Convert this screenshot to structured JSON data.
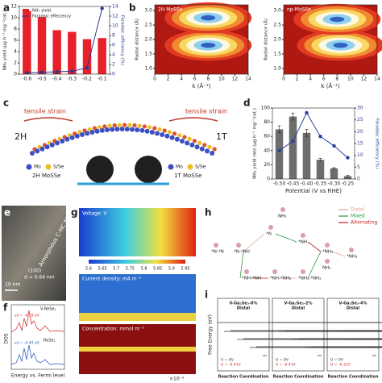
{
  "chart_data": [
    {
      "type": "bar",
      "label": "a",
      "categories": [
        "-0.6",
        "-0.5",
        "-0.4",
        "-0.3",
        "-0.2",
        "-0.1"
      ],
      "y_label": "NH₃ yield (μg h⁻¹ mg⁻¹cat.)",
      "y2_label": "Faradaic efficiency (%)",
      "series": [
        {
          "name": "NH₃ yield",
          "color": "#e8202a",
          "values": [
            11.2,
            10.1,
            7.8,
            7.5,
            6.2,
            6.4
          ]
        },
        {
          "name": "Faradaic effeciency",
          "color": "#2b3990",
          "type": "line",
          "axis": "y2",
          "values": [
            0.3,
            0.4,
            0.5,
            0.6,
            1.3,
            13.6
          ]
        }
      ],
      "ylim": [
        0,
        12
      ],
      "yticks": [
        0,
        2,
        4,
        6,
        8,
        10,
        12
      ],
      "y2lim": [
        0,
        14
      ],
      "y2ticks": [
        0,
        2,
        4,
        6,
        8,
        10,
        12,
        14
      ],
      "legend": "upper left"
    },
    {
      "type": "contour",
      "label": "b",
      "title": "2H MoSSe",
      "x_label": "k (Å⁻¹)",
      "y_label": "Radial distance (Å)",
      "xlim": [
        0,
        14
      ],
      "xticks": [
        0,
        2,
        4,
        6,
        8,
        10,
        12,
        14
      ],
      "ylim": [
        0.8,
        3.2
      ],
      "yticks": [
        {
          "value": 1,
          "label": "1.0"
        },
        1.5,
        {
          "value": 2,
          "label": "2.0"
        },
        2.5,
        {
          "value": 3,
          "label": "3.0"
        }
      ],
      "peaks": [
        {
          "x": 8,
          "y": 1.8
        },
        {
          "x": 8,
          "y": 2.75
        }
      ]
    },
    {
      "type": "contour",
      "title": "np-MoSSe",
      "x_label": "k (Å⁻¹)",
      "y_label": "Radial distance (Å)",
      "xlim": [
        0,
        14
      ],
      "xticks": [
        0,
        2,
        4,
        6,
        8,
        10,
        12,
        14
      ],
      "ylim": [
        0.8,
        3.2
      ],
      "yticks": [
        {
          "value": 1,
          "label": "1.0"
        },
        1.5,
        {
          "value": 2,
          "label": "2.0"
        },
        2.5,
        {
          "value": 3,
          "label": "3.0"
        }
      ],
      "peaks": [
        {
          "x": 8.5,
          "y": 1.8
        },
        {
          "x": 8,
          "y": 2.7
        }
      ]
    },
    {
      "type": "bar",
      "label": "d",
      "categories": [
        "-0.50",
        "-0.45",
        "-0.40",
        "-0.35",
        "-0.30",
        "-0.25"
      ],
      "x_label": "Potential (V vs RHE)",
      "y_label": "NH₃ yield rate (μg h⁻¹ mg⁻¹cat.)",
      "y2_label": "Faradaic efficiency (%)",
      "series": [
        {
          "color": "#6d6d6d",
          "values": [
            70,
            88,
            65,
            27,
            15,
            4
          ],
          "errors": [
            5,
            5,
            5,
            2,
            1,
            1
          ]
        },
        {
          "color": "#2b3fa0",
          "type": "line",
          "axis": "y2",
          "values": [
            12,
            16,
            28,
            18,
            14,
            9
          ]
        }
      ],
      "ylim": [
        0,
        100
      ],
      "yticks": [
        0,
        20,
        40,
        60,
        80,
        100
      ],
      "y2lim": [
        0,
        30
      ],
      "y2ticks": [
        0,
        5,
        10,
        15,
        20,
        25,
        30
      ]
    }
  ],
  "panels": {
    "c": {
      "label": "c",
      "strain": [
        "tensile strain",
        "tensile strain"
      ],
      "phase_left": "2H",
      "phase_right": "1T",
      "legend_left": [
        "Mo",
        "S/Se"
      ],
      "legend_right": [
        "Mo",
        "S/Se"
      ],
      "caption_left": "2H MoSSe",
      "caption_right": "1T MoSSe"
    },
    "e": {
      "label": "e",
      "material": "Amorphous C-HC NFs",
      "plane": "(100)",
      "spacing": "d = 0.64 nm",
      "scale": "10 nm"
    },
    "f": {
      "label": "f",
      "top": "V-ReSe₂",
      "bottom": "ReSe₂",
      "top_center": "εd = -4.19 eV",
      "bottom_center": "εd = -4.42 eV",
      "y_label": "DOS",
      "x_label": "Energy vs. Fermi level"
    },
    "g": {
      "label": "g",
      "voltage": "Voltage: V",
      "colorbar": [
        5.6,
        5.65,
        5.7,
        5.75,
        5.8,
        5.85,
        5.9,
        5.95
      ],
      "current": "Current density: mA m⁻²",
      "concentration": "Concentration: mmol m⁻³",
      "scale": "×10⁻³"
    },
    "h": {
      "label": "h",
      "legend": [
        "Distal",
        "Mixed",
        "Alternating"
      ],
      "nodes": [
        "*N-*N",
        "*N-*NH",
        "*NH-*NH",
        "*NH-*NH₂",
        "*NH₂-*NH₂",
        "*N",
        "*NH",
        "*NH₂",
        "*NH₃",
        "NH₃",
        "NH₃"
      ]
    },
    "i": {
      "label": "i",
      "y_label": "Free Energy (eV)",
      "panels": [
        {
          "title": "V-Ga₂Se₃-0%",
          "path": "Distal",
          "legend": [
            "U = 0V",
            "U = -0.41V"
          ],
          "x_label": "Reaction Coordination"
        },
        {
          "title": "V-Ga₂Se₃-2%",
          "path": "Distal",
          "legend": [
            "U = 0V",
            "U = -0.41V"
          ],
          "x_label": "Reaction Coordination"
        },
        {
          "title": "V-Ga₂Se₃-4%",
          "path": "Distal",
          "legend": [
            "U = 0V",
            "U = -0.31V"
          ],
          "x_label": "Reaction Coordination"
        }
      ]
    }
  }
}
